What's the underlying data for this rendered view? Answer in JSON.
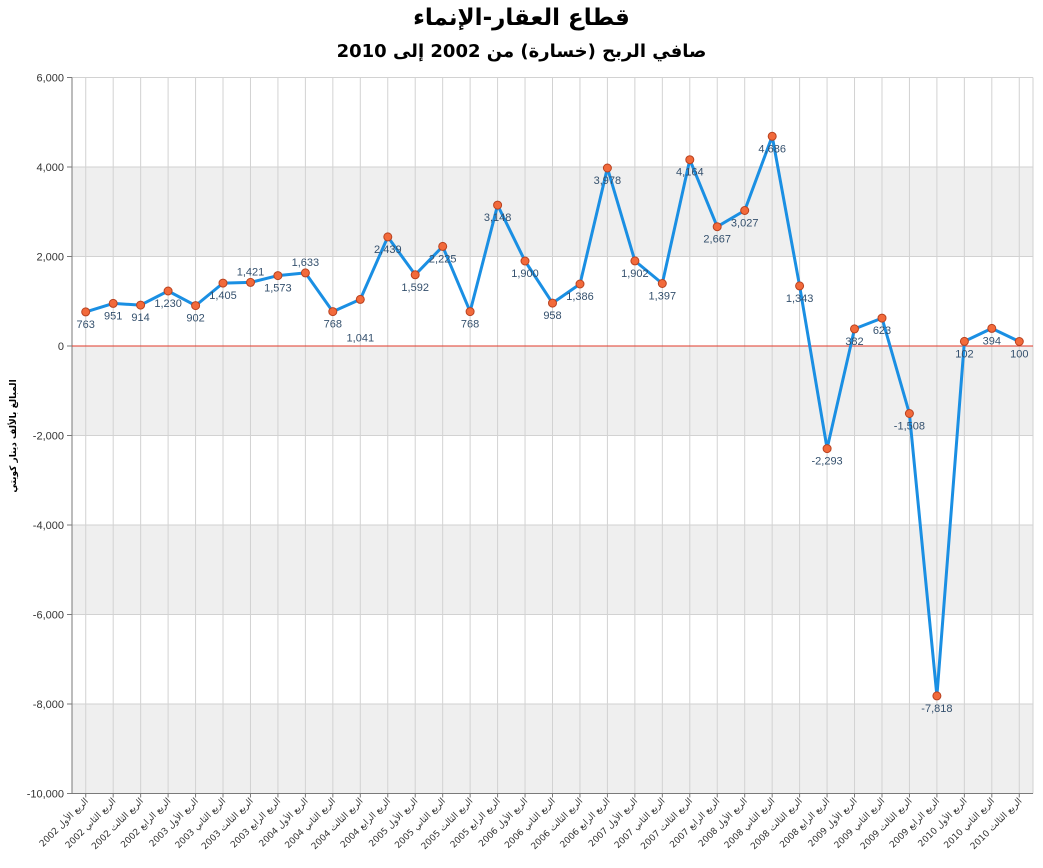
{
  "chart_data": {
    "type": "line",
    "title": "قطاع العقار-الإنماء",
    "subtitle": "صافي الربح (خسارة) من 2002 إلى 2010",
    "xlabel": "",
    "ylabel": "المبالغ بالألف دينار كويتي",
    "ylim": [
      -10000,
      6000
    ],
    "yticks": [
      6000,
      4000,
      2000,
      0,
      -2000,
      -4000,
      -6000,
      -8000,
      -10000
    ],
    "ytick_labels": [
      "6,000",
      "4,000",
      "2,000",
      "0",
      "-2,000",
      "-4,000",
      "-6,000",
      "-8,000",
      "-10,000"
    ],
    "categories": [
      "الربع الأول 2002",
      "الربع الثاني 2002",
      "الربع الثالث 2002",
      "الربع الرابع 2002",
      "الربع الأول 2003",
      "الربع الثاني 2003",
      "الربع الثالث 2003",
      "الربع الرابع 2003",
      "الربع الأول 2004",
      "الربع الثاني 2004",
      "الربع الثالث 2004",
      "الربع الرابع 2004",
      "الربع الأول 2005",
      "الربع الثاني 2005",
      "الربع الثالث 2005",
      "الربع الرابع 2005",
      "الربع الأول 2006",
      "الربع الثاني 2006",
      "الربع الثالث 2006",
      "الربع الرابع 2006",
      "الربع الأول 2007",
      "الربع الثاني 2007",
      "الربع الثالث 2007",
      "الربع الرابع 2007",
      "الربع الأول 2008",
      "الربع الثاني 2008",
      "الربع الثالث 2008",
      "الربع الرابع 2008",
      "الربع الأول 2009",
      "الربع الثاني 2009",
      "الربع الثالث 2009",
      "الربع الرابع 2009",
      "الربع الأول 2010",
      "الربع الثاني 2010",
      "الربع الثالث 2010"
    ],
    "series": [
      {
        "values": [
          763,
          951,
          914,
          1230,
          902,
          1405,
          1421,
          1573,
          1633,
          768,
          1041,
          2439,
          1592,
          2225,
          768,
          3148,
          1900,
          958,
          1386,
          3978,
          1902,
          1397,
          4164,
          2667,
          3027,
          4686,
          1343,
          -2293,
          382,
          623,
          -1508,
          -7818,
          102,
          394,
          100
        ],
        "data_labels": [
          "763",
          "951",
          "914",
          "1,230",
          "902",
          "1,405",
          "1,421",
          "1,573",
          "1,633",
          "768",
          "1,041",
          "2,439",
          "1,592",
          "2,225",
          "768",
          "3,148",
          "1,900",
          "958",
          "1,386",
          "3,978",
          "1,902",
          "1,397",
          "4,164",
          "2,667",
          "3,027",
          "4,686",
          "1,343",
          "-2,293",
          "382",
          "623",
          "-1,508",
          "-7,818",
          "102",
          "394",
          "100"
        ]
      }
    ],
    "grid": true,
    "banded_background": true,
    "zero_line": true,
    "markers": "circle",
    "legend": "none",
    "colors": {
      "line": "#1a8fe3",
      "marker_fill": "#f26a3b",
      "marker_stroke": "#b8411f",
      "data_labels": "#34506d",
      "zero_line": "#e23a2a",
      "band": "#efefef",
      "grid": "#d2d2d2",
      "axis": "#7a7a7a"
    }
  }
}
